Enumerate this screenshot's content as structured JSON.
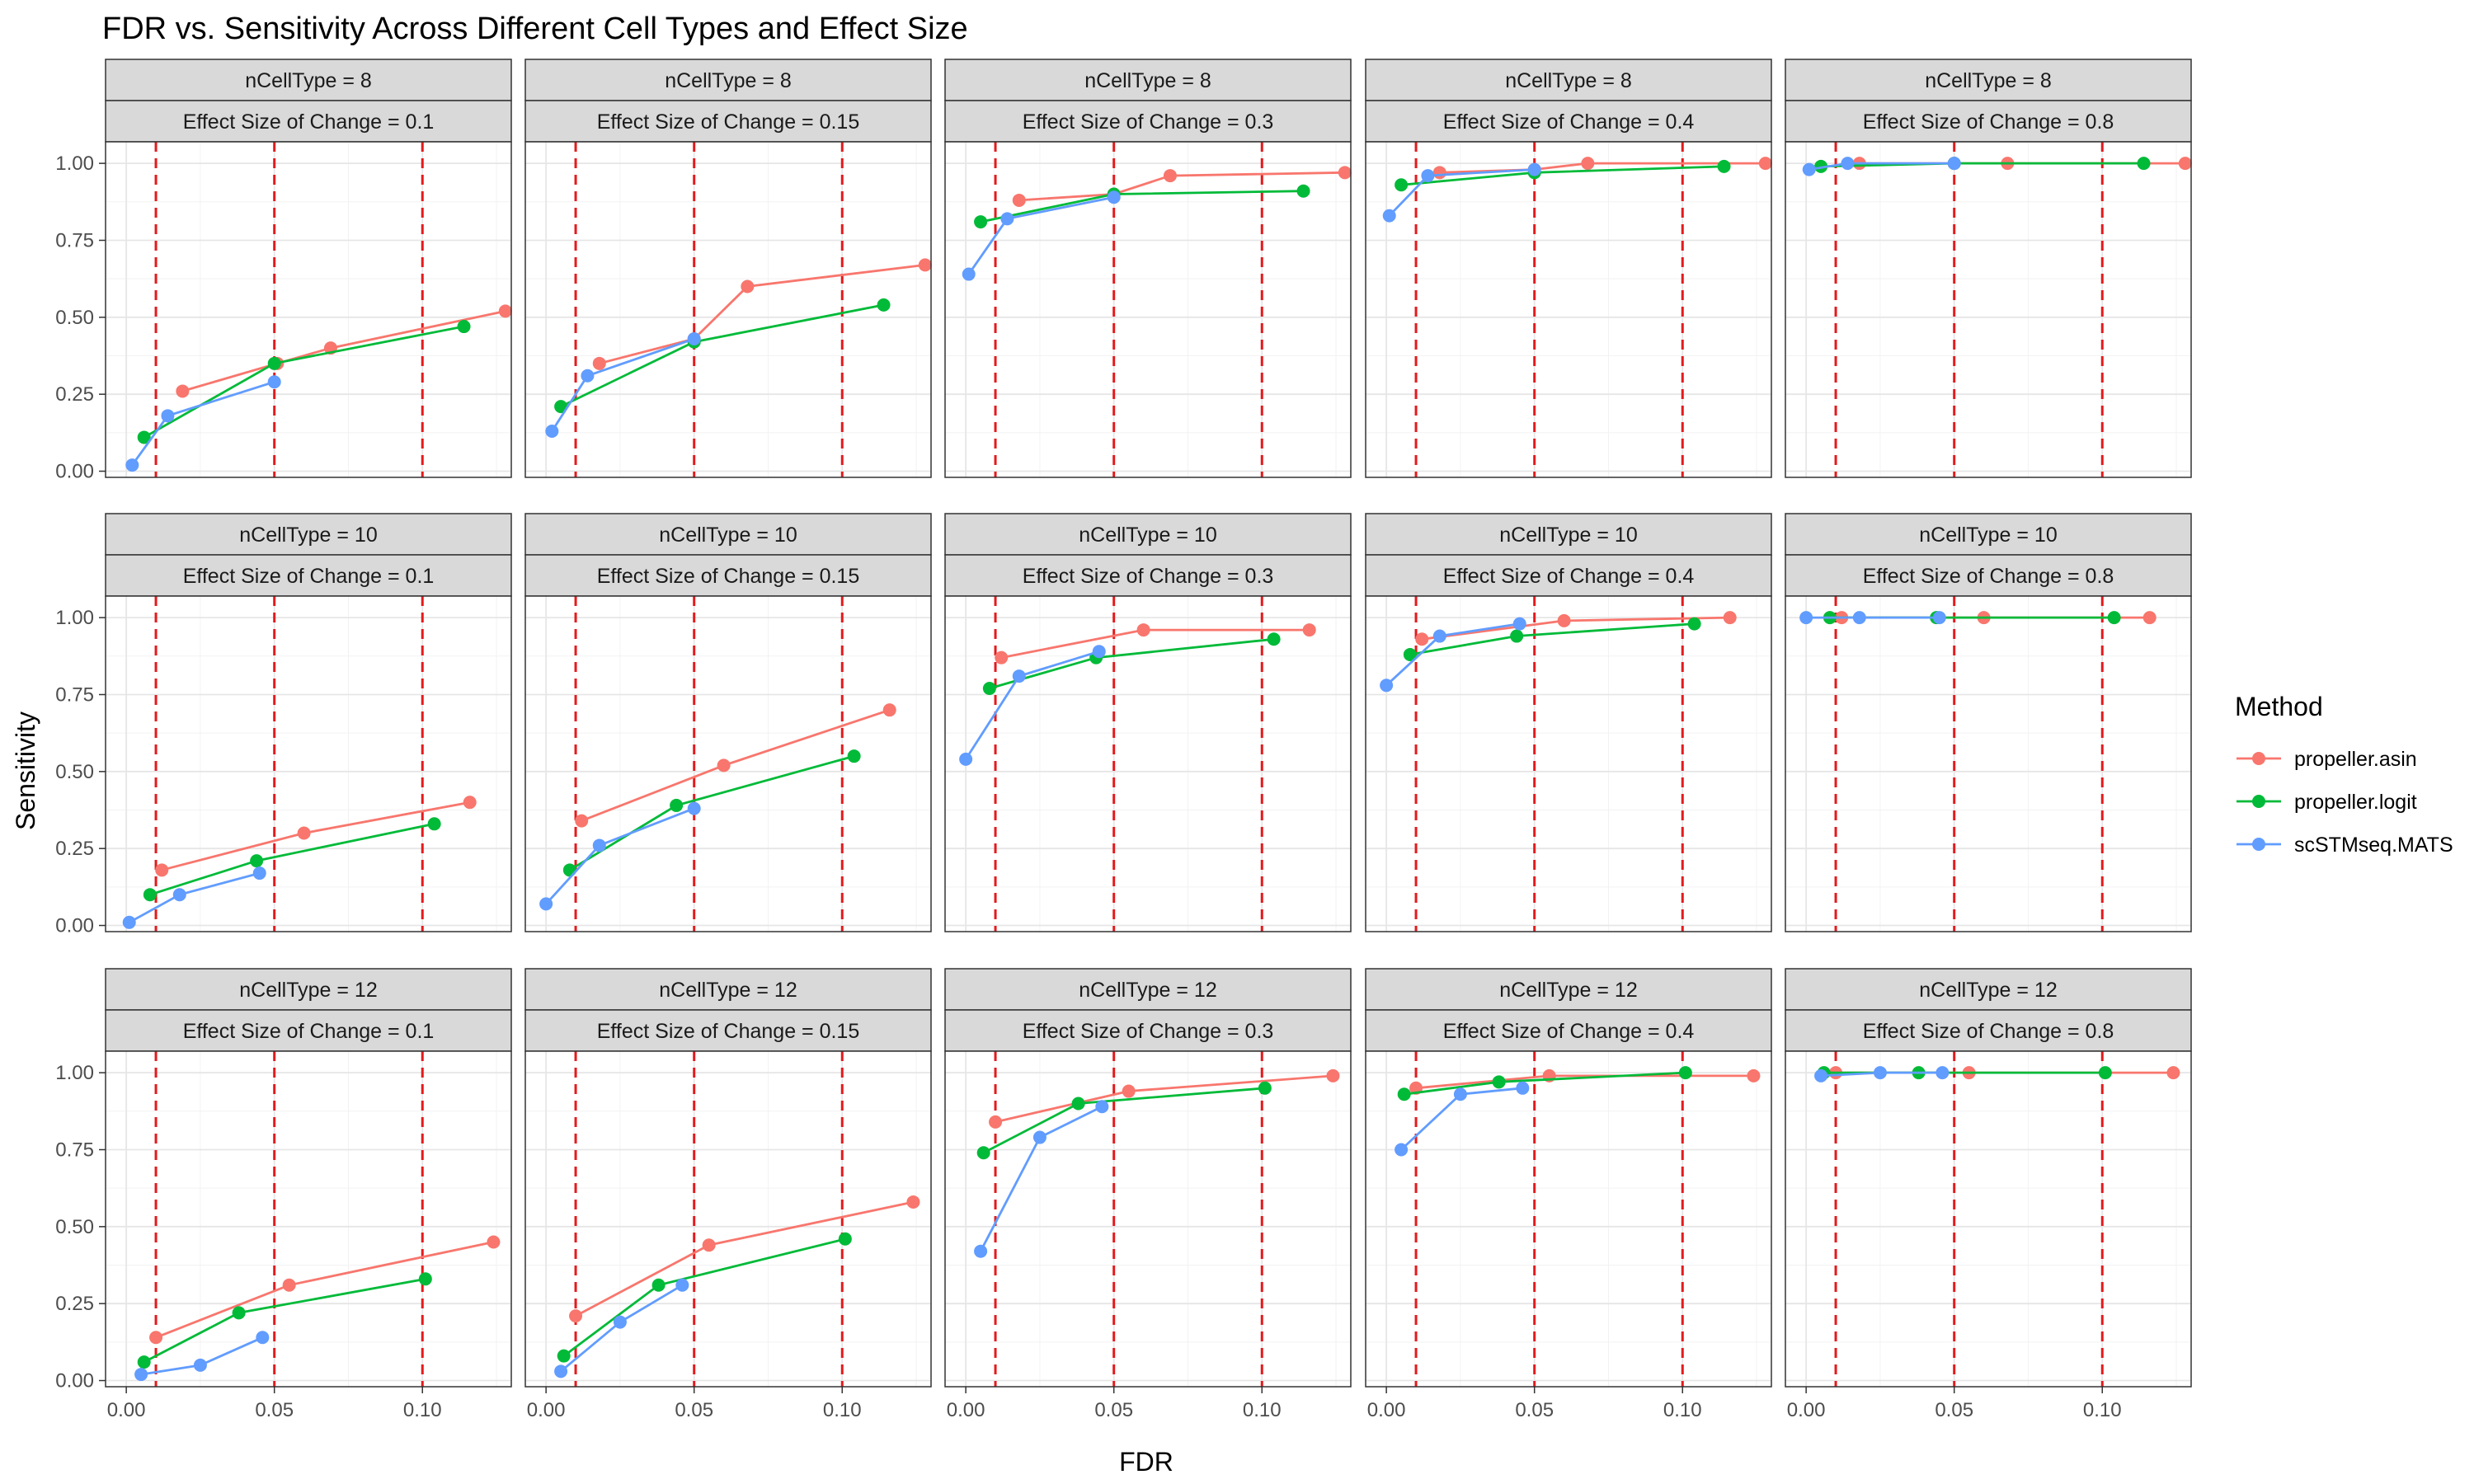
{
  "chart_data": {
    "type": "line",
    "title": "FDR vs. Sensitivity Across Different Cell Types and Effect Size",
    "xlabel": "FDR",
    "ylabel": "Sensitivity",
    "xlim": [
      -0.007,
      0.13
    ],
    "ylim": [
      -0.02,
      1.07
    ],
    "x_ticks": [
      0,
      0.05,
      0.1
    ],
    "x_tick_labels": [
      "0.00",
      "0.05",
      "0.10"
    ],
    "y_ticks": [
      0,
      0.25,
      0.5,
      0.75,
      1
    ],
    "y_tick_labels": [
      "0.00",
      "0.25",
      "0.50",
      "0.75",
      "1.00"
    ],
    "reference_lines_x": [
      0.01,
      0.05,
      0.1
    ],
    "reference_line_color": "#e41a1c",
    "grid": true,
    "legend_title": "Method",
    "legend_position": "right",
    "methods": [
      {
        "name": "propeller.asin",
        "color": "#F8766D"
      },
      {
        "name": "propeller.logit",
        "color": "#00BA38"
      },
      {
        "name": "scSTMseq.MATS",
        "color": "#619CFF"
      }
    ],
    "row_strips": [
      "nCellType = 8",
      "nCellType = 10",
      "nCellType = 12"
    ],
    "col_strips": [
      "Effect Size of Change = 0.1",
      "Effect Size of Change = 0.15",
      "Effect Size of Change = 0.3",
      "Effect Size of Change = 0.4",
      "Effect Size of Change = 0.8"
    ],
    "panels": [
      {
        "row": 0,
        "col": 0,
        "series": [
          {
            "name": "propeller.asin",
            "x": [
              0.019,
              0.051,
              0.069,
              0.128
            ],
            "y": [
              0.26,
              0.35,
              0.4,
              0.52
            ]
          },
          {
            "name": "propeller.logit",
            "x": [
              0.006,
              0.05,
              0.114
            ],
            "y": [
              0.11,
              0.35,
              0.47
            ]
          },
          {
            "name": "scSTMseq.MATS",
            "x": [
              0.002,
              0.014,
              0.05
            ],
            "y": [
              0.02,
              0.18,
              0.29
            ]
          }
        ]
      },
      {
        "row": 0,
        "col": 1,
        "series": [
          {
            "name": "propeller.asin",
            "x": [
              0.018,
              0.05,
              0.068,
              0.128
            ],
            "y": [
              0.35,
              0.43,
              0.6,
              0.67
            ]
          },
          {
            "name": "propeller.logit",
            "x": [
              0.005,
              0.05,
              0.114
            ],
            "y": [
              0.21,
              0.42,
              0.54
            ]
          },
          {
            "name": "scSTMseq.MATS",
            "x": [
              0.002,
              0.014,
              0.05
            ],
            "y": [
              0.13,
              0.31,
              0.43
            ]
          }
        ]
      },
      {
        "row": 0,
        "col": 2,
        "series": [
          {
            "name": "propeller.asin",
            "x": [
              0.018,
              0.05,
              0.069,
              0.128
            ],
            "y": [
              0.88,
              0.9,
              0.96,
              0.97
            ]
          },
          {
            "name": "propeller.logit",
            "x": [
              0.005,
              0.05,
              0.114
            ],
            "y": [
              0.81,
              0.9,
              0.91
            ]
          },
          {
            "name": "scSTMseq.MATS",
            "x": [
              0.001,
              0.014,
              0.05
            ],
            "y": [
              0.64,
              0.82,
              0.89
            ]
          }
        ]
      },
      {
        "row": 0,
        "col": 3,
        "series": [
          {
            "name": "propeller.asin",
            "x": [
              0.018,
              0.05,
              0.068,
              0.128
            ],
            "y": [
              0.97,
              0.98,
              1.0,
              1.0
            ]
          },
          {
            "name": "propeller.logit",
            "x": [
              0.005,
              0.05,
              0.114
            ],
            "y": [
              0.93,
              0.97,
              0.99
            ]
          },
          {
            "name": "scSTMseq.MATS",
            "x": [
              0.001,
              0.014,
              0.05
            ],
            "y": [
              0.83,
              0.96,
              0.98
            ]
          }
        ]
      },
      {
        "row": 0,
        "col": 4,
        "series": [
          {
            "name": "propeller.asin",
            "x": [
              0.018,
              0.05,
              0.068,
              0.128
            ],
            "y": [
              1.0,
              1.0,
              1.0,
              1.0
            ]
          },
          {
            "name": "propeller.logit",
            "x": [
              0.005,
              0.05,
              0.114
            ],
            "y": [
              0.99,
              1.0,
              1.0
            ]
          },
          {
            "name": "scSTMseq.MATS",
            "x": [
              0.001,
              0.014,
              0.05
            ],
            "y": [
              0.98,
              1.0,
              1.0
            ]
          }
        ]
      },
      {
        "row": 1,
        "col": 0,
        "series": [
          {
            "name": "propeller.asin",
            "x": [
              0.012,
              0.06,
              0.116
            ],
            "y": [
              0.18,
              0.3,
              0.4
            ]
          },
          {
            "name": "propeller.logit",
            "x": [
              0.008,
              0.044,
              0.104
            ],
            "y": [
              0.1,
              0.21,
              0.33
            ]
          },
          {
            "name": "scSTMseq.MATS",
            "x": [
              0.001,
              0.018,
              0.045
            ],
            "y": [
              0.01,
              0.1,
              0.17
            ]
          }
        ]
      },
      {
        "row": 1,
        "col": 1,
        "series": [
          {
            "name": "propeller.asin",
            "x": [
              0.012,
              0.06,
              0.116
            ],
            "y": [
              0.34,
              0.52,
              0.7
            ]
          },
          {
            "name": "propeller.logit",
            "x": [
              0.008,
              0.044,
              0.104
            ],
            "y": [
              0.18,
              0.39,
              0.55
            ]
          },
          {
            "name": "scSTMseq.MATS",
            "x": [
              0.0,
              0.018,
              0.05
            ],
            "y": [
              0.07,
              0.26,
              0.38
            ]
          }
        ]
      },
      {
        "row": 1,
        "col": 2,
        "series": [
          {
            "name": "propeller.asin",
            "x": [
              0.012,
              0.06,
              0.116
            ],
            "y": [
              0.87,
              0.96,
              0.96
            ]
          },
          {
            "name": "propeller.logit",
            "x": [
              0.008,
              0.044,
              0.104
            ],
            "y": [
              0.77,
              0.87,
              0.93
            ]
          },
          {
            "name": "scSTMseq.MATS",
            "x": [
              0.0,
              0.018,
              0.045
            ],
            "y": [
              0.54,
              0.81,
              0.89
            ]
          }
        ]
      },
      {
        "row": 1,
        "col": 3,
        "series": [
          {
            "name": "propeller.asin",
            "x": [
              0.012,
              0.06,
              0.116
            ],
            "y": [
              0.93,
              0.99,
              1.0
            ]
          },
          {
            "name": "propeller.logit",
            "x": [
              0.008,
              0.044,
              0.104
            ],
            "y": [
              0.88,
              0.94,
              0.98
            ]
          },
          {
            "name": "scSTMseq.MATS",
            "x": [
              0.0,
              0.018,
              0.045
            ],
            "y": [
              0.78,
              0.94,
              0.98
            ]
          }
        ]
      },
      {
        "row": 1,
        "col": 4,
        "series": [
          {
            "name": "propeller.asin",
            "x": [
              0.012,
              0.06,
              0.116
            ],
            "y": [
              1.0,
              1.0,
              1.0
            ]
          },
          {
            "name": "propeller.logit",
            "x": [
              0.008,
              0.044,
              0.104
            ],
            "y": [
              1.0,
              1.0,
              1.0
            ]
          },
          {
            "name": "scSTMseq.MATS",
            "x": [
              0.0,
              0.018,
              0.045
            ],
            "y": [
              1.0,
              1.0,
              1.0
            ]
          }
        ]
      },
      {
        "row": 2,
        "col": 0,
        "series": [
          {
            "name": "propeller.asin",
            "x": [
              0.01,
              0.055,
              0.124
            ],
            "y": [
              0.14,
              0.31,
              0.45
            ]
          },
          {
            "name": "propeller.logit",
            "x": [
              0.006,
              0.038,
              0.101
            ],
            "y": [
              0.06,
              0.22,
              0.33
            ]
          },
          {
            "name": "scSTMseq.MATS",
            "x": [
              0.005,
              0.025,
              0.046
            ],
            "y": [
              0.02,
              0.05,
              0.14
            ]
          }
        ]
      },
      {
        "row": 2,
        "col": 1,
        "series": [
          {
            "name": "propeller.asin",
            "x": [
              0.01,
              0.055,
              0.124
            ],
            "y": [
              0.21,
              0.44,
              0.58
            ]
          },
          {
            "name": "propeller.logit",
            "x": [
              0.006,
              0.038,
              0.101
            ],
            "y": [
              0.08,
              0.31,
              0.46
            ]
          },
          {
            "name": "scSTMseq.MATS",
            "x": [
              0.005,
              0.025,
              0.046
            ],
            "y": [
              0.03,
              0.19,
              0.31
            ]
          }
        ]
      },
      {
        "row": 2,
        "col": 2,
        "series": [
          {
            "name": "propeller.asin",
            "x": [
              0.01,
              0.055,
              0.124
            ],
            "y": [
              0.84,
              0.94,
              0.99
            ]
          },
          {
            "name": "propeller.logit",
            "x": [
              0.006,
              0.038,
              0.101
            ],
            "y": [
              0.74,
              0.9,
              0.95
            ]
          },
          {
            "name": "scSTMseq.MATS",
            "x": [
              0.005,
              0.025,
              0.046
            ],
            "y": [
              0.42,
              0.79,
              0.89
            ]
          }
        ]
      },
      {
        "row": 2,
        "col": 3,
        "series": [
          {
            "name": "propeller.asin",
            "x": [
              0.01,
              0.055,
              0.124
            ],
            "y": [
              0.95,
              0.99,
              0.99
            ]
          },
          {
            "name": "propeller.logit",
            "x": [
              0.006,
              0.038,
              0.101
            ],
            "y": [
              0.93,
              0.97,
              1.0
            ]
          },
          {
            "name": "scSTMseq.MATS",
            "x": [
              0.005,
              0.025,
              0.046
            ],
            "y": [
              0.75,
              0.93,
              0.95
            ]
          }
        ]
      },
      {
        "row": 2,
        "col": 4,
        "series": [
          {
            "name": "propeller.asin",
            "x": [
              0.01,
              0.055,
              0.124
            ],
            "y": [
              1.0,
              1.0,
              1.0
            ]
          },
          {
            "name": "propeller.logit",
            "x": [
              0.006,
              0.038,
              0.101
            ],
            "y": [
              1.0,
              1.0,
              1.0
            ]
          },
          {
            "name": "scSTMseq.MATS",
            "x": [
              0.005,
              0.025,
              0.046
            ],
            "y": [
              0.99,
              1.0,
              1.0
            ]
          }
        ]
      }
    ]
  }
}
